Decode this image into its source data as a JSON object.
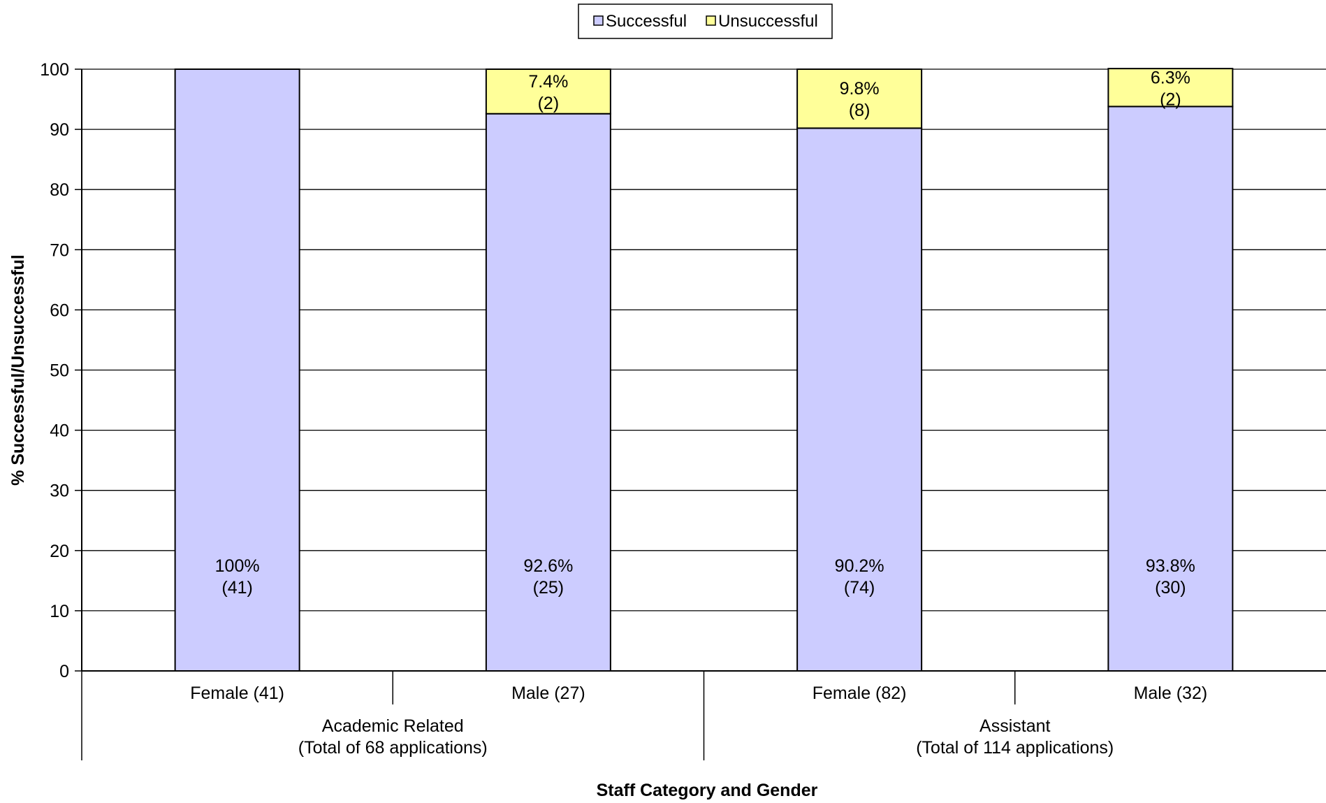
{
  "chart_data": {
    "type": "bar",
    "stacked": true,
    "categories": [
      "Female (41)",
      "Male (27)",
      "Female (82)",
      "Male (32)"
    ],
    "groups": [
      {
        "label": "Academic Related\n(Total of 68 applications)",
        "categories": [
          0,
          1
        ]
      },
      {
        "label": "Assistant\n(Total of 114 applications)",
        "categories": [
          2,
          3
        ]
      }
    ],
    "series": [
      {
        "name": "Successful",
        "color": "#ccccff",
        "values": [
          100,
          92.6,
          90.2,
          93.8
        ],
        "labels": [
          "100%\n(41)",
          "92.6%\n(25)",
          "90.2%\n(74)",
          "93.8%\n(30)"
        ]
      },
      {
        "name": "Unsuccessful",
        "color": "#ffff99",
        "values": [
          0,
          7.4,
          9.8,
          6.3
        ],
        "labels": [
          "",
          "7.4%\n(2)",
          "9.8%\n(8)",
          "6.3%\n(2)"
        ]
      }
    ],
    "xlabel": "Staff Category and Gender",
    "ylabel": "% Successful/Unsuccessful",
    "ylim": [
      0,
      100
    ],
    "yticks": [
      0,
      10,
      20,
      30,
      40,
      50,
      60,
      70,
      80,
      90,
      100
    ],
    "grid": true,
    "legend": "top-center"
  }
}
